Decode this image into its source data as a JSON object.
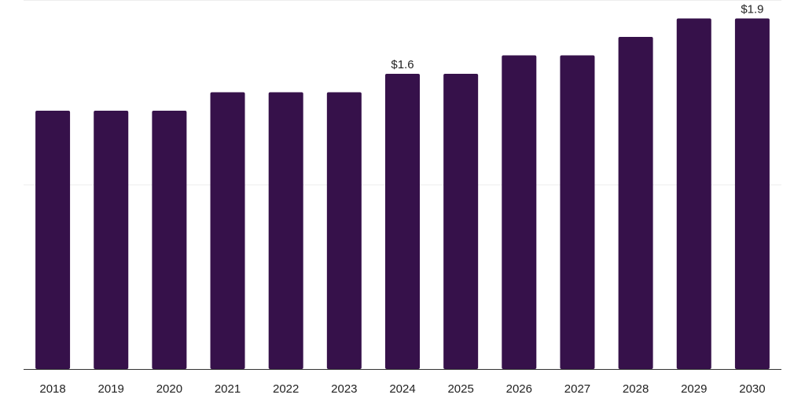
{
  "chart_data": {
    "type": "bar",
    "title": "",
    "xlabel": "",
    "ylabel": "",
    "categories": [
      "2018",
      "2019",
      "2020",
      "2021",
      "2022",
      "2023",
      "2024",
      "2025",
      "2026",
      "2027",
      "2028",
      "2029",
      "2030"
    ],
    "values": [
      1.4,
      1.4,
      1.4,
      1.5,
      1.5,
      1.5,
      1.6,
      1.6,
      1.7,
      1.7,
      1.8,
      1.9,
      1.9
    ],
    "data_labels": [
      {
        "category": "2024",
        "text": "$1.6"
      },
      {
        "category": "2030",
        "text": "$1.9"
      }
    ],
    "ylim": [
      0,
      2.0
    ],
    "grid": true,
    "y_axis_labels_shown": false,
    "bar_color": "#36114a"
  }
}
